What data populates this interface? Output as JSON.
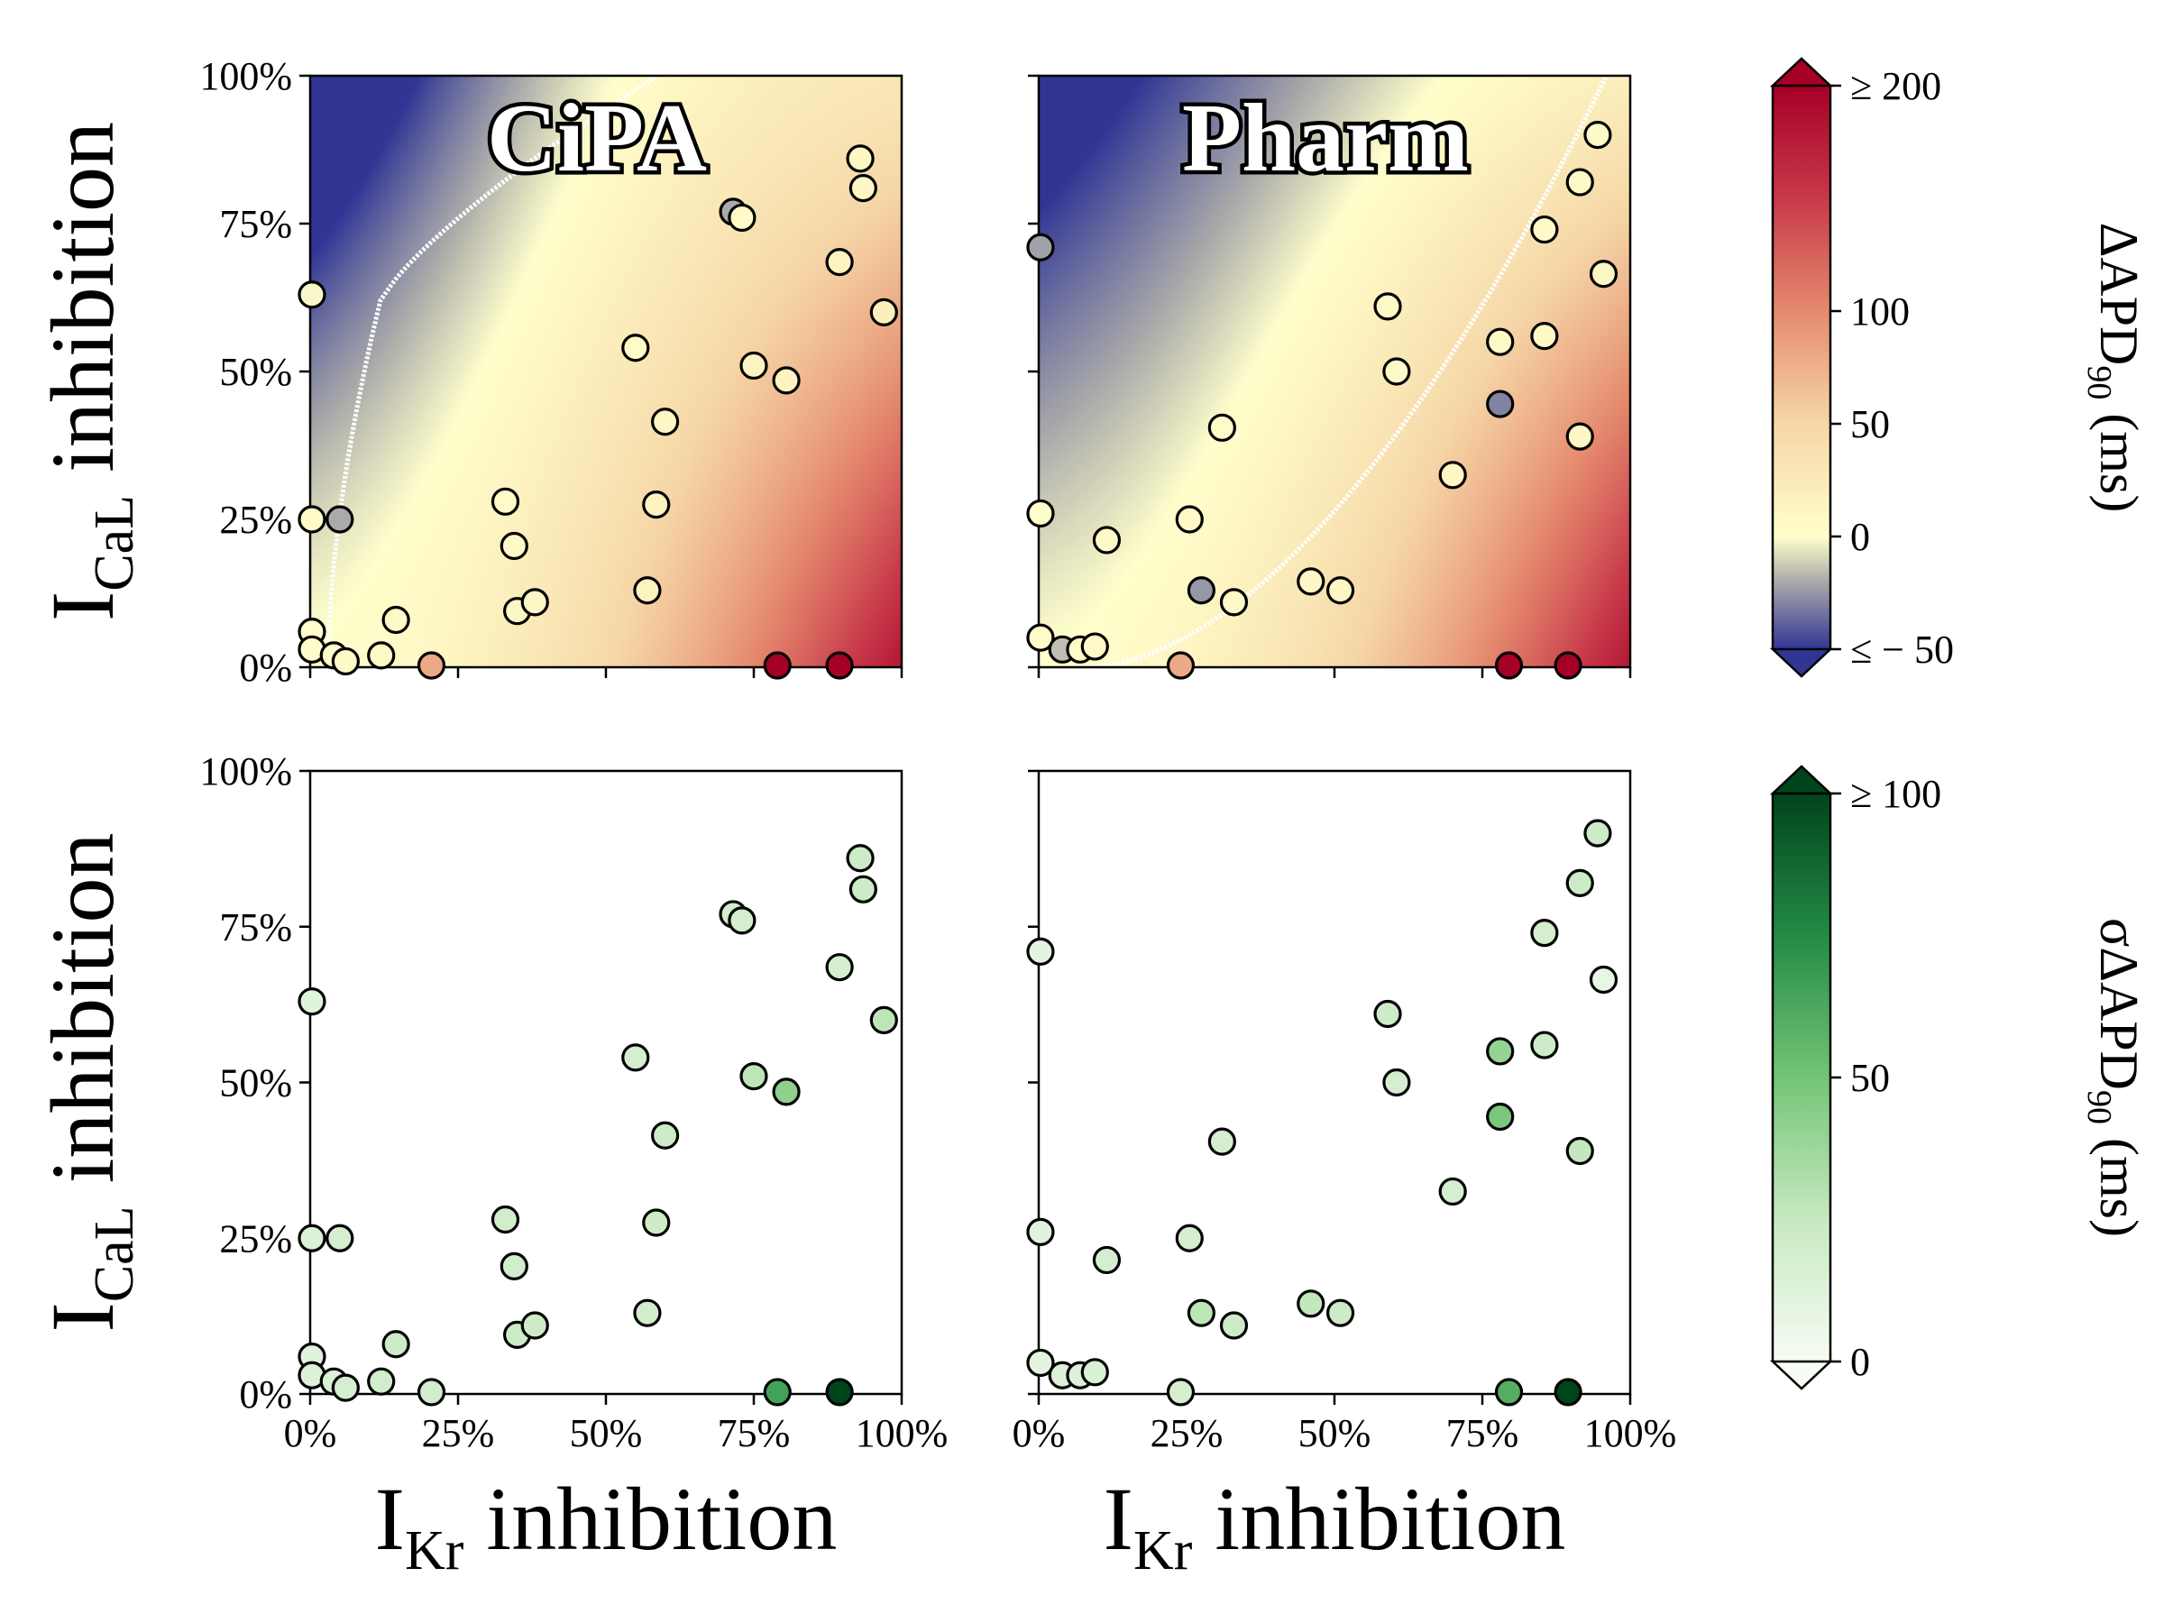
{
  "chart_data": [
    {
      "type": "scatter",
      "title": "CiPA",
      "model": "CiPA",
      "metric": "delta",
      "xlabel": {
        "main": "I",
        "sub": "Kr",
        "rest": " inhibition"
      },
      "ylabel": {
        "main": "I",
        "sub": "CaL",
        "rest": " inhibition"
      },
      "xlim": [
        0,
        100
      ],
      "ylim": [
        0,
        100
      ],
      "xticks": [
        "0%",
        "25%",
        "50%",
        "75%",
        "100%"
      ],
      "yticks": [
        "0%",
        "25%",
        "50%",
        "75%",
        "100%"
      ],
      "show_xticklabels": false,
      "show_yticklabels": true,
      "background": "heatmap",
      "points": [
        {
          "x": 0.3,
          "y": 63,
          "v": -2
        },
        {
          "x": 0.3,
          "y": 25,
          "v": 5
        },
        {
          "x": 5,
          "y": 25,
          "v": -20
        },
        {
          "x": 0.3,
          "y": 6,
          "v": 2
        },
        {
          "x": 0.3,
          "y": 3,
          "v": 2
        },
        {
          "x": 4,
          "y": 2,
          "v": 4
        },
        {
          "x": 6,
          "y": 1,
          "v": 6
        },
        {
          "x": 12,
          "y": 2,
          "v": 6
        },
        {
          "x": 14.5,
          "y": 8,
          "v": 8
        },
        {
          "x": 20.5,
          "y": 0.3,
          "v": 80
        },
        {
          "x": 33,
          "y": 28,
          "v": 5
        },
        {
          "x": 34.5,
          "y": 20.5,
          "v": 8
        },
        {
          "x": 35,
          "y": 9.5,
          "v": 10
        },
        {
          "x": 38,
          "y": 11,
          "v": 10
        },
        {
          "x": 55,
          "y": 54,
          "v": 5
        },
        {
          "x": 57,
          "y": 13,
          "v": 15
        },
        {
          "x": 58.5,
          "y": 27.5,
          "v": 15
        },
        {
          "x": 60,
          "y": 41.5,
          "v": 10
        },
        {
          "x": 71.5,
          "y": 77,
          "v": -20
        },
        {
          "x": 73,
          "y": 76,
          "v": 5
        },
        {
          "x": 75,
          "y": 51,
          "v": 15
        },
        {
          "x": 80.5,
          "y": 48.5,
          "v": 15
        },
        {
          "x": 79,
          "y": 0.3,
          "v": 220
        },
        {
          "x": 89.5,
          "y": 0.3,
          "v": 220
        },
        {
          "x": 89.5,
          "y": 68.5,
          "v": 15
        },
        {
          "x": 93,
          "y": 86,
          "v": 10
        },
        {
          "x": 93.5,
          "y": 81,
          "v": 10
        },
        {
          "x": 97,
          "y": 60,
          "v": 20
        }
      ]
    },
    {
      "type": "scatter",
      "title": "Pharm",
      "model": "Pharm",
      "metric": "delta",
      "xlim": [
        0,
        100
      ],
      "ylim": [
        0,
        100
      ],
      "xticks": [
        "0%",
        "25%",
        "50%",
        "75%",
        "100%"
      ],
      "yticks": [
        "0%",
        "25%",
        "50%",
        "75%",
        "100%"
      ],
      "show_xticklabels": false,
      "show_yticklabels": false,
      "background": "heatmap",
      "points": [
        {
          "x": 0.3,
          "y": 71,
          "v": -22
        },
        {
          "x": 0.3,
          "y": 26,
          "v": 2
        },
        {
          "x": 0.3,
          "y": 5,
          "v": 5
        },
        {
          "x": 4,
          "y": 3,
          "v": -15
        },
        {
          "x": 7,
          "y": 3,
          "v": 5
        },
        {
          "x": 9.5,
          "y": 3.5,
          "v": 6
        },
        {
          "x": 11.5,
          "y": 21.5,
          "v": 6
        },
        {
          "x": 24,
          "y": 0.3,
          "v": 80
        },
        {
          "x": 25.5,
          "y": 25,
          "v": 6
        },
        {
          "x": 27.5,
          "y": 13,
          "v": -25
        },
        {
          "x": 31,
          "y": 40.5,
          "v": 5
        },
        {
          "x": 33,
          "y": 11,
          "v": 8
        },
        {
          "x": 46,
          "y": 14.5,
          "v": 10
        },
        {
          "x": 51,
          "y": 13,
          "v": 10
        },
        {
          "x": 59,
          "y": 61,
          "v": 6
        },
        {
          "x": 60.5,
          "y": 50,
          "v": 6
        },
        {
          "x": 70,
          "y": 32.5,
          "v": 10
        },
        {
          "x": 78,
          "y": 55,
          "v": 6
        },
        {
          "x": 78,
          "y": 44.5,
          "v": -30
        },
        {
          "x": 79.5,
          "y": 0.3,
          "v": 220
        },
        {
          "x": 89.5,
          "y": 0.3,
          "v": 220
        },
        {
          "x": 85.5,
          "y": 74,
          "v": 6
        },
        {
          "x": 85.5,
          "y": 56,
          "v": 8
        },
        {
          "x": 91.5,
          "y": 82,
          "v": 6
        },
        {
          "x": 91.5,
          "y": 39,
          "v": 10
        },
        {
          "x": 94.5,
          "y": 90,
          "v": 6
        },
        {
          "x": 95.5,
          "y": 66.5,
          "v": 10
        }
      ]
    },
    {
      "type": "scatter",
      "model": "CiPA",
      "metric": "sigma",
      "xlabel": {
        "main": "I",
        "sub": "Kr",
        "rest": " inhibition"
      },
      "ylabel": {
        "main": "I",
        "sub": "CaL",
        "rest": " inhibition"
      },
      "xlim": [
        0,
        100
      ],
      "ylim": [
        0,
        100
      ],
      "xticks": [
        "0%",
        "25%",
        "50%",
        "75%",
        "100%"
      ],
      "yticks": [
        "0%",
        "25%",
        "50%",
        "75%",
        "100%"
      ],
      "show_xticklabels": true,
      "show_yticklabels": true,
      "background": "white",
      "points": [
        {
          "x": 0.3,
          "y": 63,
          "v": 12
        },
        {
          "x": 0.3,
          "y": 25,
          "v": 14
        },
        {
          "x": 5,
          "y": 25,
          "v": 18
        },
        {
          "x": 0.3,
          "y": 6,
          "v": 12
        },
        {
          "x": 0.3,
          "y": 3,
          "v": 14
        },
        {
          "x": 4,
          "y": 2,
          "v": 16
        },
        {
          "x": 6,
          "y": 1,
          "v": 18
        },
        {
          "x": 12,
          "y": 2,
          "v": 20
        },
        {
          "x": 14.5,
          "y": 8,
          "v": 22
        },
        {
          "x": 20.5,
          "y": 0.3,
          "v": 20
        },
        {
          "x": 33,
          "y": 28,
          "v": 20
        },
        {
          "x": 34.5,
          "y": 20.5,
          "v": 20
        },
        {
          "x": 35,
          "y": 9.5,
          "v": 22
        },
        {
          "x": 38,
          "y": 11,
          "v": 22
        },
        {
          "x": 55,
          "y": 54,
          "v": 18
        },
        {
          "x": 57,
          "y": 13,
          "v": 20
        },
        {
          "x": 58.5,
          "y": 27.5,
          "v": 22
        },
        {
          "x": 60,
          "y": 41.5,
          "v": 22
        },
        {
          "x": 71.5,
          "y": 77,
          "v": 20
        },
        {
          "x": 73,
          "y": 76,
          "v": 18
        },
        {
          "x": 75,
          "y": 51,
          "v": 28
        },
        {
          "x": 80.5,
          "y": 48.5,
          "v": 42
        },
        {
          "x": 79,
          "y": 0.3,
          "v": 65
        },
        {
          "x": 89.5,
          "y": 0.3,
          "v": 100
        },
        {
          "x": 89.5,
          "y": 68.5,
          "v": 18
        },
        {
          "x": 93,
          "y": 86,
          "v": 22
        },
        {
          "x": 93.5,
          "y": 81,
          "v": 22
        },
        {
          "x": 97,
          "y": 60,
          "v": 28
        }
      ]
    },
    {
      "type": "scatter",
      "model": "Pharm",
      "metric": "sigma",
      "xlabel": {
        "main": "I",
        "sub": "Kr",
        "rest": " inhibition"
      },
      "xlim": [
        0,
        100
      ],
      "ylim": [
        0,
        100
      ],
      "xticks": [
        "0%",
        "25%",
        "50%",
        "75%",
        "100%"
      ],
      "yticks": [
        "0%",
        "25%",
        "50%",
        "75%",
        "100%"
      ],
      "show_xticklabels": true,
      "show_yticklabels": false,
      "background": "white",
      "points": [
        {
          "x": 0.3,
          "y": 71,
          "v": 10
        },
        {
          "x": 0.3,
          "y": 26,
          "v": 12
        },
        {
          "x": 0.3,
          "y": 5,
          "v": 10
        },
        {
          "x": 4,
          "y": 3,
          "v": 14
        },
        {
          "x": 7,
          "y": 3,
          "v": 14
        },
        {
          "x": 9.5,
          "y": 3.5,
          "v": 16
        },
        {
          "x": 11.5,
          "y": 21.5,
          "v": 18
        },
        {
          "x": 24,
          "y": 0.3,
          "v": 18
        },
        {
          "x": 25.5,
          "y": 25,
          "v": 18
        },
        {
          "x": 27.5,
          "y": 13,
          "v": 28
        },
        {
          "x": 31,
          "y": 40.5,
          "v": 18
        },
        {
          "x": 33,
          "y": 11,
          "v": 22
        },
        {
          "x": 46,
          "y": 14.5,
          "v": 26
        },
        {
          "x": 51,
          "y": 13,
          "v": 22
        },
        {
          "x": 59,
          "y": 61,
          "v": 22
        },
        {
          "x": 60.5,
          "y": 50,
          "v": 18
        },
        {
          "x": 70,
          "y": 32.5,
          "v": 18
        },
        {
          "x": 78,
          "y": 55,
          "v": 40
        },
        {
          "x": 78,
          "y": 44.5,
          "v": 48
        },
        {
          "x": 79.5,
          "y": 0.3,
          "v": 60
        },
        {
          "x": 89.5,
          "y": 0.3,
          "v": 100
        },
        {
          "x": 85.5,
          "y": 74,
          "v": 18
        },
        {
          "x": 85.5,
          "y": 56,
          "v": 22
        },
        {
          "x": 91.5,
          "y": 82,
          "v": 22
        },
        {
          "x": 91.5,
          "y": 39,
          "v": 26
        },
        {
          "x": 94.5,
          "y": 90,
          "v": 22
        },
        {
          "x": 95.5,
          "y": 66.5,
          "v": 8
        }
      ]
    }
  ],
  "colorbars": [
    {
      "id": "delta",
      "label": {
        "main": "ΔAPD",
        "sub": "90",
        "rest": " (ms)"
      },
      "range": [
        -50,
        200
      ],
      "ticks": [
        {
          "value": 200,
          "label": "≥ 200"
        },
        {
          "value": 100,
          "label": "100"
        },
        {
          "value": 50,
          "label": "50"
        },
        {
          "value": 0,
          "label": "0"
        },
        {
          "value": -50,
          "label": "≤ − 50"
        }
      ],
      "colors": [
        "#313695",
        "#aaaaaa",
        "#ffffcc",
        "#f6d7a7",
        "#d6604d",
        "#a50026"
      ],
      "extend": "both"
    },
    {
      "id": "sigma",
      "label": {
        "main": "σΔAPD",
        "sub": "90",
        "rest": " (ms)"
      },
      "range": [
        0,
        100
      ],
      "ticks": [
        {
          "value": 100,
          "label": "≥ 100"
        },
        {
          "value": 50,
          "label": "50"
        },
        {
          "value": 0,
          "label": "0"
        }
      ],
      "colors": [
        "#f7fcf5",
        "#c7e9c0",
        "#74c476",
        "#238b45",
        "#00441b"
      ],
      "extend": "both"
    }
  ]
}
